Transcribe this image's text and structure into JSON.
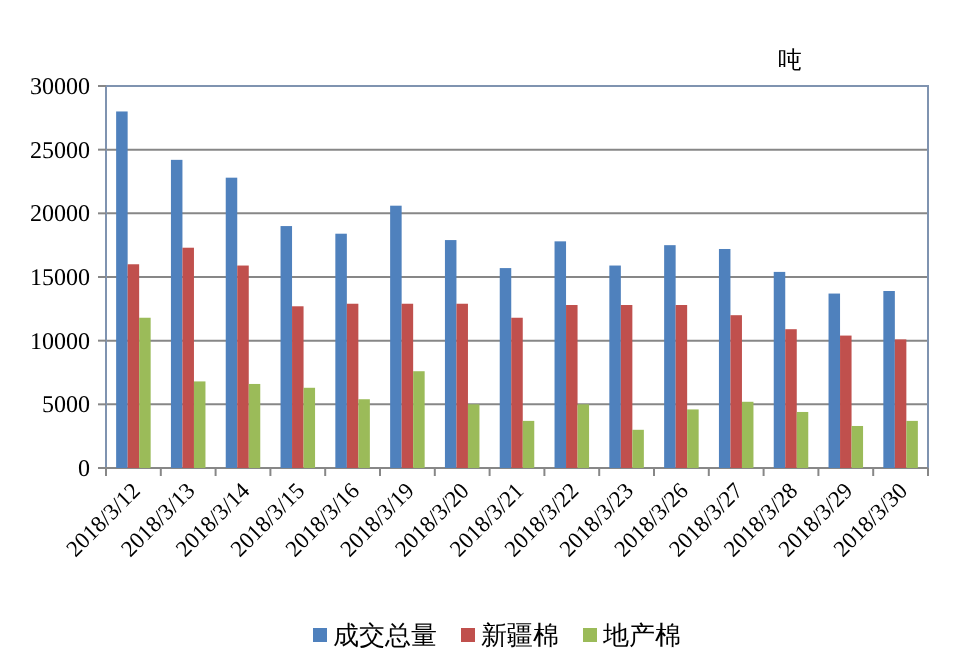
{
  "chart_data": {
    "type": "bar",
    "categories": [
      "2018/3/12",
      "2018/3/13",
      "2018/3/14",
      "2018/3/15",
      "2018/3/16",
      "2018/3/19",
      "2018/3/20",
      "2018/3/21",
      "2018/3/22",
      "2018/3/23",
      "2018/3/26",
      "2018/3/27",
      "2018/3/28",
      "2018/3/29",
      "2018/3/30"
    ],
    "series": [
      {
        "name": "成交总量",
        "color": "#4f81bd",
        "values": [
          28000,
          24200,
          22800,
          19000,
          18400,
          20600,
          17900,
          15700,
          17800,
          15900,
          17500,
          17200,
          15400,
          13700,
          13900
        ]
      },
      {
        "name": "新疆棉",
        "color": "#c0504d",
        "values": [
          16000,
          17300,
          15900,
          12700,
          12900,
          12900,
          12900,
          11800,
          12800,
          12800,
          12800,
          12000,
          10900,
          10400,
          10100
        ]
      },
      {
        "name": "地产棉",
        "color": "#9bbb59",
        "values": [
          11800,
          6800,
          6600,
          6300,
          5400,
          7600,
          5000,
          3700,
          5000,
          3000,
          4600,
          5200,
          4400,
          3300,
          3700
        ]
      }
    ],
    "ylim": [
      0,
      30000
    ],
    "yticks": [
      0,
      5000,
      10000,
      15000,
      20000,
      25000,
      30000
    ],
    "grid": "y",
    "legend": "bottom",
    "annotations": [
      "吨"
    ]
  }
}
